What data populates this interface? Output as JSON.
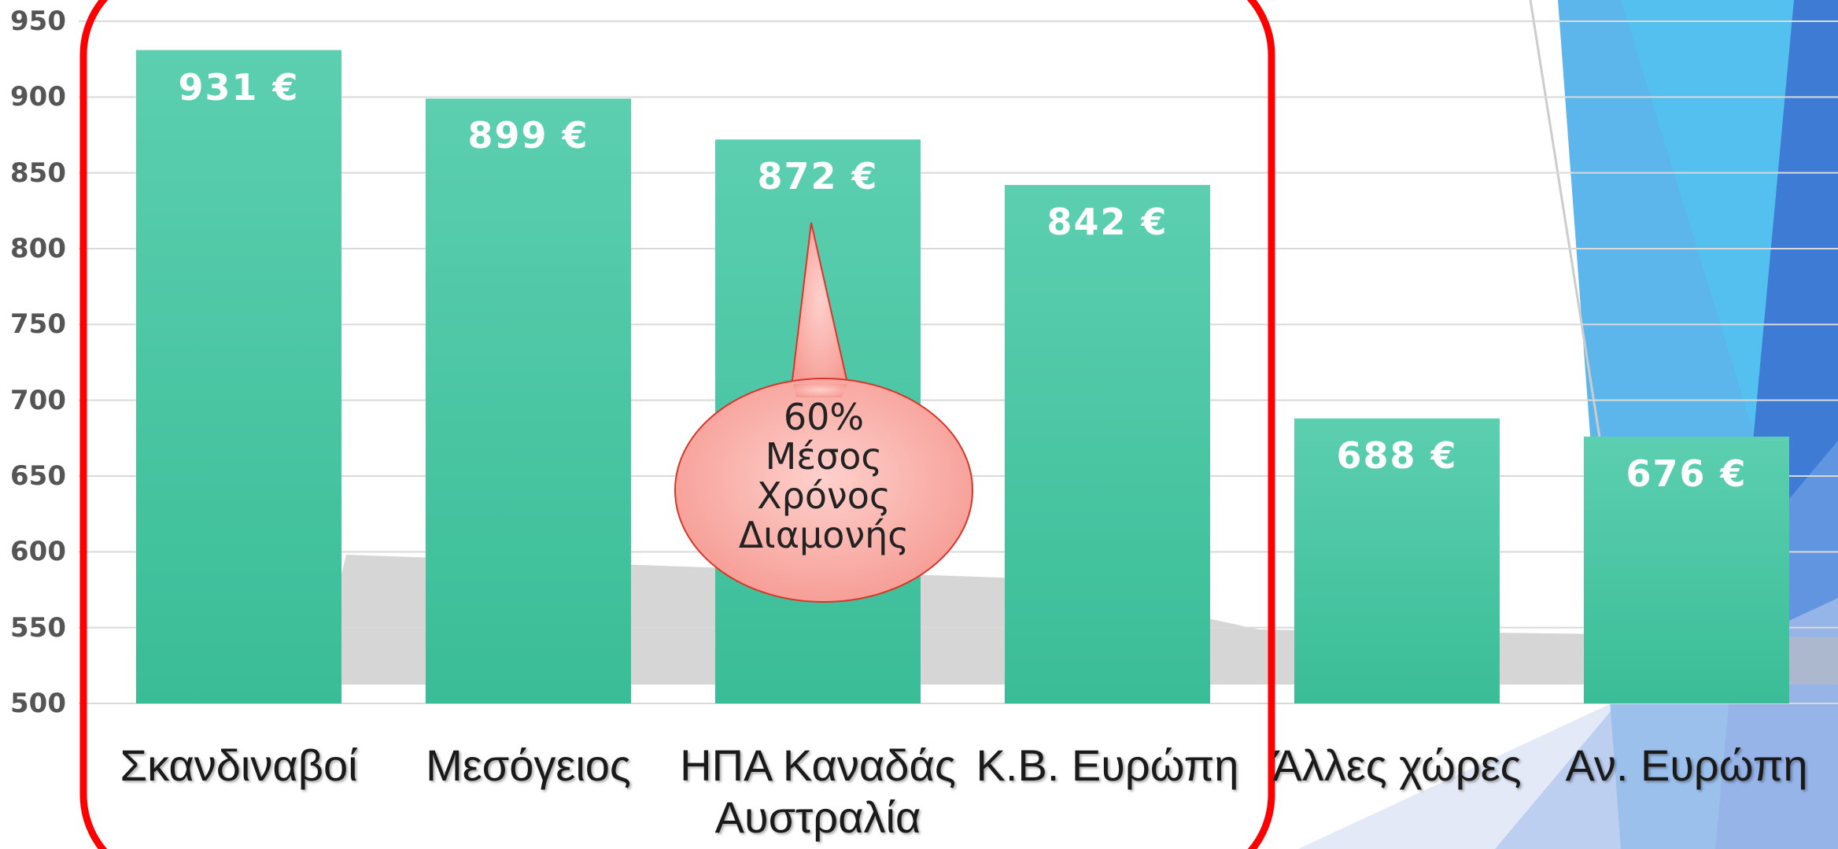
{
  "chart_data": {
    "type": "bar",
    "categories": [
      "Σκανδιναβοί",
      "Μεσόγειος",
      "ΗΠΑ Καναδάς Αυστραλία",
      "Κ.Β. Ευρώπη",
      "Άλλες χώρες",
      "Αν. Ευρώπη"
    ],
    "values": [
      931,
      899,
      872,
      842,
      688,
      676
    ],
    "value_labels": [
      "931 €",
      "899 €",
      "872 €",
      "842 €",
      "688 €",
      "676 €"
    ],
    "color": "#4cc7a3",
    "ylim": [
      500,
      950
    ],
    "yticks": [
      500,
      550,
      600,
      650,
      700,
      750,
      800,
      850,
      900,
      950
    ],
    "grid": true,
    "annotations": [
      "60% Μέσος Χρόνος Διαμονής"
    ]
  }
}
